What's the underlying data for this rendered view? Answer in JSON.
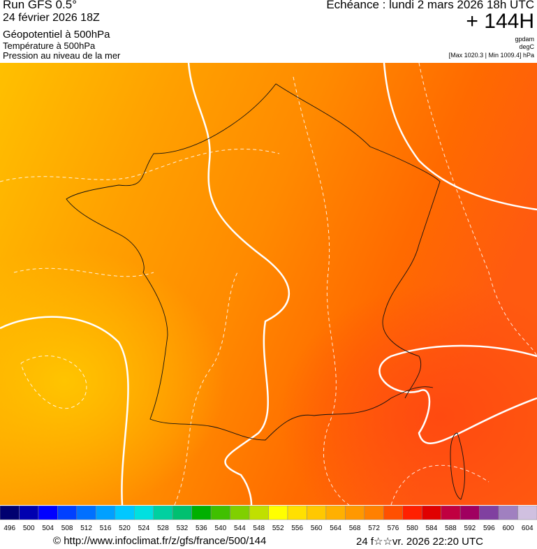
{
  "header": {
    "run": "Run GFS 0.5°",
    "run_date": "24 février 2026 18Z",
    "field1": "Géopotentiel à 500hPa",
    "field2": "Température à 500hPa",
    "field3": "Pression au niveau de la mer",
    "valid": "Echéance : lundi 2 mars 2026 18h UTC",
    "lead": "+ 144H",
    "unit1": "gpdam",
    "unit2": "degC",
    "pressure_range": "[Max 1020.3 | Min 1009.4] hPa"
  },
  "scale": {
    "ticks": [
      496,
      500,
      504,
      508,
      512,
      516,
      520,
      524,
      528,
      532,
      536,
      540,
      544,
      548,
      552,
      556,
      560,
      564,
      568,
      572,
      576,
      580,
      584,
      588,
      592,
      596,
      600,
      604
    ],
    "colors": [
      "#000070",
      "#0000b0",
      "#0000ff",
      "#0040ff",
      "#0070ff",
      "#00a0ff",
      "#00c8ff",
      "#00e0e0",
      "#00d0a0",
      "#00c070",
      "#00b000",
      "#40c000",
      "#80d000",
      "#c0e000",
      "#ffff00",
      "#ffe000",
      "#ffc800",
      "#ffb000",
      "#ff9800",
      "#ff8000",
      "#ff5000",
      "#ff2000",
      "#e00000",
      "#c00040",
      "#a00060",
      "#8040a0",
      "#a080c0",
      "#d0c0e0"
    ]
  },
  "footer": {
    "source": "© http://www.infoclimat.fr/z/gfs/france/500/144",
    "generated": "24 f☆☆vr. 2026 22:20 UTC"
  }
}
